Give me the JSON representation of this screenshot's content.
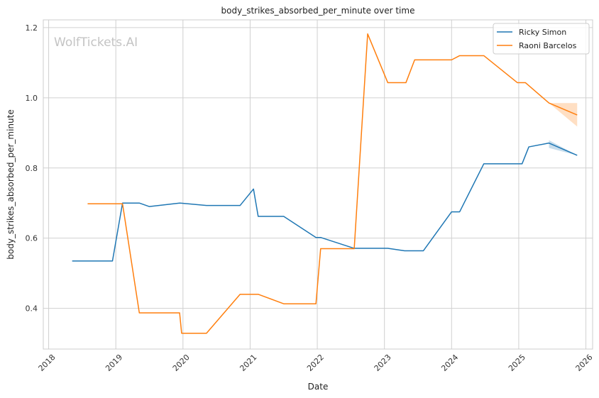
{
  "chart_data": {
    "type": "line",
    "title": "body_strikes_absorbed_per_minute over time",
    "xlabel": "Date",
    "ylabel": "body_strikes_absorbed_per_minute",
    "watermark": "WolfTickets.AI",
    "xlim": [
      2017.92,
      2026.1
    ],
    "ylim": [
      0.284,
      1.222
    ],
    "x_ticks": [
      2018,
      2019,
      2020,
      2021,
      2022,
      2023,
      2024,
      2025,
      2026
    ],
    "x_tick_labels": [
      "2018",
      "2019",
      "2020",
      "2021",
      "2022",
      "2023",
      "2024",
      "2025",
      "2026"
    ],
    "y_ticks": [
      0.4,
      0.6,
      0.8,
      1.0,
      1.2
    ],
    "y_tick_labels": [
      "0.4",
      "0.6",
      "0.8",
      "1.0",
      "1.2"
    ],
    "grid": true,
    "legend_position": "top-right",
    "series": [
      {
        "name": "Ricky Simon",
        "color": "#1f77b4",
        "x": [
          2018.35,
          2018.95,
          2019.1,
          2019.35,
          2019.5,
          2019.95,
          2020.35,
          2020.85,
          2021.05,
          2021.12,
          2021.5,
          2021.98,
          2022.05,
          2022.55,
          2023.05,
          2023.3,
          2023.58,
          2024.0,
          2024.12,
          2024.48,
          2025.05,
          2025.15,
          2025.45,
          2025.87
        ],
        "y": [
          0.535,
          0.535,
          0.7,
          0.7,
          0.69,
          0.7,
          0.693,
          0.693,
          0.74,
          0.662,
          0.662,
          0.602,
          0.602,
          0.571,
          0.571,
          0.564,
          0.564,
          0.675,
          0.675,
          0.812,
          0.812,
          0.86,
          0.871,
          0.836
        ],
        "band": {
          "x": [
            2025.45,
            2025.87
          ],
          "lower": [
            0.857,
            0.836
          ],
          "upper": [
            0.879,
            0.836
          ]
        }
      },
      {
        "name": "Raoni Barcelos",
        "color": "#ff7f0e",
        "x": [
          2018.58,
          2019.1,
          2019.35,
          2019.95,
          2019.98,
          2020.35,
          2020.85,
          2021.12,
          2021.5,
          2021.98,
          2022.05,
          2022.55,
          2022.75,
          2023.05,
          2023.32,
          2023.45,
          2024.0,
          2024.12,
          2024.48,
          2024.98,
          2025.1,
          2025.45,
          2025.87
        ],
        "y": [
          0.698,
          0.698,
          0.387,
          0.387,
          0.329,
          0.329,
          0.44,
          0.44,
          0.413,
          0.413,
          0.57,
          0.57,
          1.182,
          1.043,
          1.043,
          1.108,
          1.108,
          1.12,
          1.12,
          1.043,
          1.043,
          0.985,
          0.951
        ],
        "band": {
          "x": [
            2025.45,
            2025.87
          ],
          "lower": [
            0.985,
            0.918
          ],
          "upper": [
            0.985,
            0.985
          ]
        }
      }
    ]
  }
}
